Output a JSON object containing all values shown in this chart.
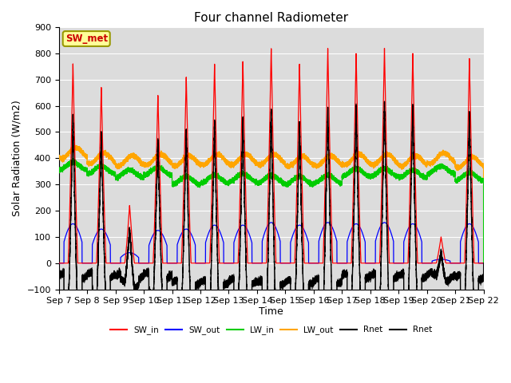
{
  "title": "Four channel Radiometer",
  "xlabel": "Time",
  "ylabel": "Solar Radiation (W/m2)",
  "ylim": [
    -100,
    900
  ],
  "yticks": [
    -100,
    0,
    100,
    200,
    300,
    400,
    500,
    600,
    700,
    800,
    900
  ],
  "num_days": 15,
  "colors": {
    "SW_in": "#FF0000",
    "SW_out": "#0000FF",
    "LW_in": "#00CC00",
    "LW_out": "#FFA500",
    "Rnet1": "#000000",
    "Rnet2": "#000000"
  },
  "annotation_text": "SW_met",
  "annotation_color": "#CC0000",
  "annotation_bg": "#FFFF99",
  "background_color": "#DCDCDC",
  "grid_color": "#FFFFFF",
  "legend_labels": [
    "SW_in",
    "SW_out",
    "LW_in",
    "LW_out",
    "Rnet",
    "Rnet"
  ],
  "SW_in_peaks": [
    760,
    670,
    220,
    640,
    710,
    760,
    770,
    820,
    760,
    820,
    800,
    820,
    800,
    100,
    780
  ],
  "SW_out_peaks": [
    150,
    130,
    40,
    125,
    130,
    145,
    145,
    155,
    145,
    155,
    150,
    155,
    150,
    15,
    150
  ],
  "LW_in_base": [
    370,
    355,
    340,
    350,
    315,
    320,
    325,
    320,
    315,
    320,
    345,
    345,
    340,
    355,
    330
  ],
  "LW_out_base": [
    420,
    400,
    390,
    395,
    390,
    395,
    395,
    395,
    388,
    390,
    395,
    395,
    390,
    400,
    385
  ]
}
